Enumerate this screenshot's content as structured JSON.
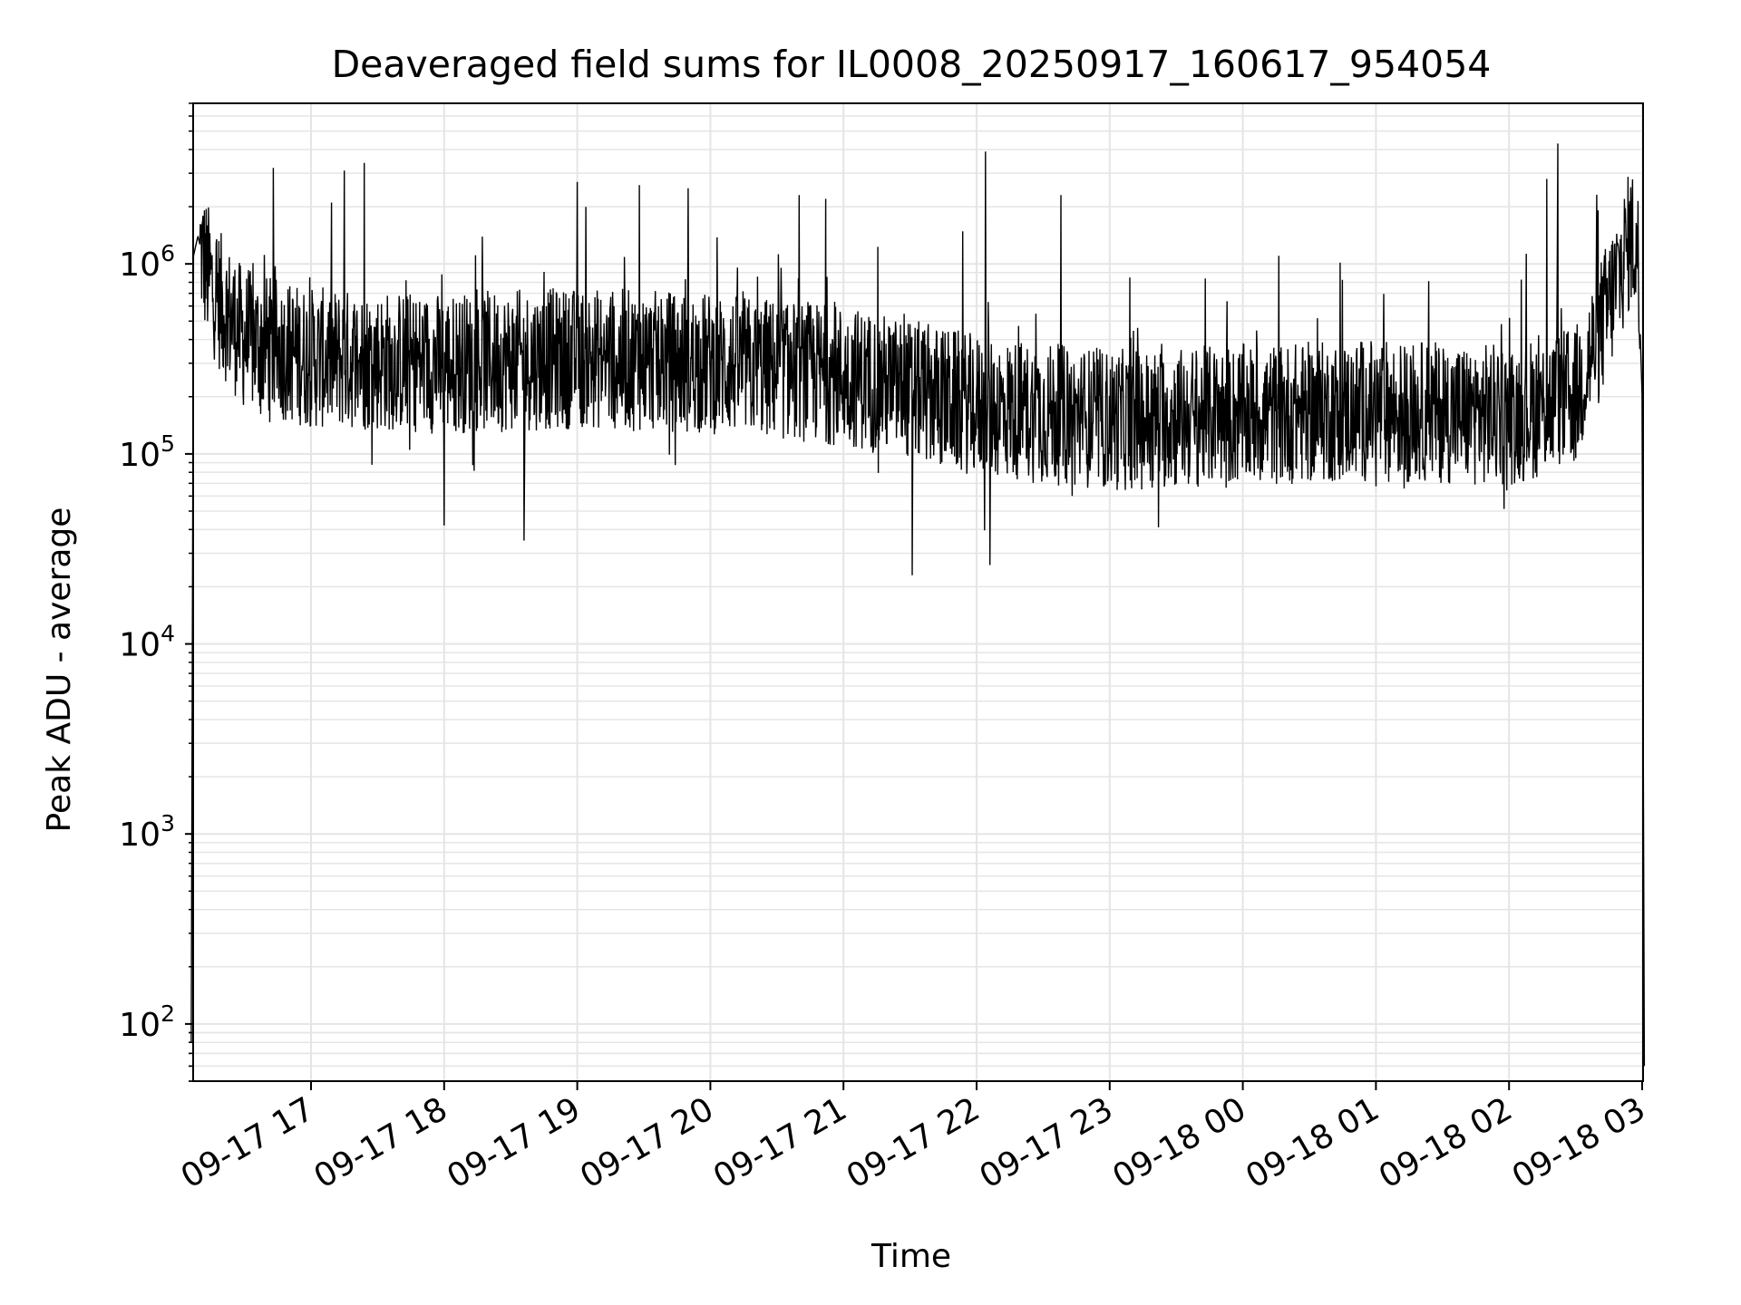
{
  "chart_data": {
    "type": "line",
    "title": "Deaveraged field sums for IL0008_20250917_160617_954054",
    "xlabel": "Time",
    "ylabel": "Peak ADU - average",
    "yscale": "log",
    "ylim": [
      50,
      7000000
    ],
    "xlim": [
      "2025-09-17 16:06",
      "2025-09-18 03:01"
    ],
    "grid": true,
    "line_color": "#000000",
    "grid_color": "#e5e5e5",
    "x_ticks": [
      {
        "time": "2025-09-17 17:00",
        "label": "09-17 17"
      },
      {
        "time": "2025-09-17 18:00",
        "label": "09-17 18"
      },
      {
        "time": "2025-09-17 19:00",
        "label": "09-17 19"
      },
      {
        "time": "2025-09-17 20:00",
        "label": "09-17 20"
      },
      {
        "time": "2025-09-17 21:00",
        "label": "09-17 21"
      },
      {
        "time": "2025-09-17 22:00",
        "label": "09-17 22"
      },
      {
        "time": "2025-09-17 23:00",
        "label": "09-17 23"
      },
      {
        "time": "2025-09-18 00:00",
        "label": "09-18 00"
      },
      {
        "time": "2025-09-18 01:00",
        "label": "09-18 01"
      },
      {
        "time": "2025-09-18 02:00",
        "label": "09-18 02"
      },
      {
        "time": "2025-09-18 03:00",
        "label": "09-18 03"
      }
    ],
    "y_ticks": [
      {
        "value": 100,
        "base": "10",
        "exp": "2"
      },
      {
        "value": 1000,
        "base": "10",
        "exp": "3"
      },
      {
        "value": 10000,
        "base": "10",
        "exp": "4"
      },
      {
        "value": 100000,
        "base": "10",
        "exp": "5"
      },
      {
        "value": 1000000,
        "base": "10",
        "exp": "6"
      }
    ],
    "series": [
      {
        "points": [
          [
            "2025-09-17 16:06",
            80
          ],
          [
            "2025-09-17 16:07",
            1100000
          ],
          [
            "2025-09-17 16:09",
            1400000
          ],
          [
            "2025-09-17 16:12",
            1000000
          ],
          [
            "2025-09-17 16:15",
            800000
          ],
          [
            "2025-09-17 16:20",
            600000
          ],
          [
            "2025-09-17 16:30",
            400000
          ],
          [
            "2025-09-17 17:00",
            320000
          ],
          [
            "2025-09-17 18:00",
            300000
          ],
          [
            "2025-09-17 19:00",
            320000
          ],
          [
            "2025-09-17 20:00",
            300000
          ],
          [
            "2025-09-17 21:00",
            260000
          ],
          [
            "2025-09-17 22:00",
            180000
          ],
          [
            "2025-09-17 23:00",
            150000
          ],
          [
            "2025-09-18 00:00",
            160000
          ],
          [
            "2025-09-18 01:00",
            170000
          ],
          [
            "2025-09-18 02:00",
            160000
          ],
          [
            "2025-09-18 02:30",
            200000
          ],
          [
            "2025-09-18 02:45",
            600000
          ],
          [
            "2025-09-18 02:55",
            1400000
          ],
          [
            "2025-09-18 02:58",
            1200000
          ],
          [
            "2025-09-18 03:00",
            200000
          ],
          [
            "2025-09-18 03:01",
            60
          ]
        ],
        "spikes": [
          [
            "2025-09-17 16:43",
            3200000
          ],
          [
            "2025-09-17 17:15",
            3100000
          ],
          [
            "2025-09-17 17:24",
            3400000
          ],
          [
            "2025-09-17 19:00",
            2700000
          ],
          [
            "2025-09-17 19:28",
            2600000
          ],
          [
            "2025-09-17 19:50",
            2500000
          ],
          [
            "2025-09-17 20:40",
            2300000
          ],
          [
            "2025-09-17 20:52",
            2200000
          ],
          [
            "2025-09-17 22:04",
            3900000
          ],
          [
            "2025-09-17 22:38",
            2300000
          ],
          [
            "2025-09-18 02:17",
            2800000
          ],
          [
            "2025-09-18 02:22",
            4300000
          ],
          [
            "2025-09-17 21:31",
            23000
          ],
          [
            "2025-09-17 22:06",
            26000
          ],
          [
            "2025-09-17 18:36",
            35000
          ],
          [
            "2025-09-17 18:00",
            42000
          ]
        ]
      }
    ]
  }
}
